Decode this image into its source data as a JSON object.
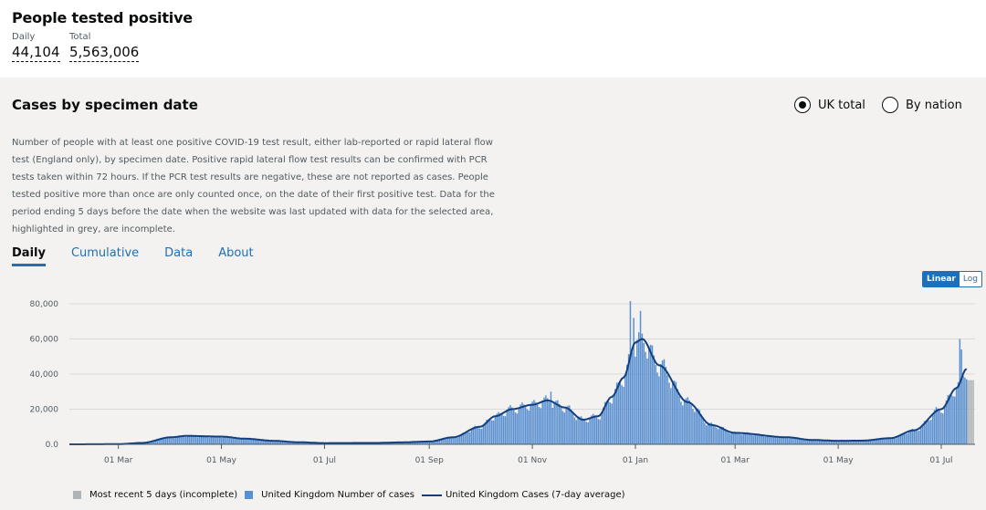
{
  "headline": {
    "title": "People tested positive",
    "daily_label": "Daily",
    "daily_value": "44,104",
    "total_label": "Total",
    "total_value": "5,563,006"
  },
  "card": {
    "title": "Cases by specimen date",
    "radio_uk": "UK total",
    "radio_nation": "By nation",
    "description": "Number of people with at least one positive COVID-19 test result, either lab-reported or rapid lateral flow test (England only), by specimen date. Positive rapid lateral flow test results can be confirmed with PCR tests taken within 72 hours. If the PCR test results are negative, these are not reported as cases. People tested positive more than once are only counted once, on the date of their first positive test. Data for the period ending 5 days before the date when the website was last updated with data for the selected area, highlighted in grey, are incomplete.",
    "tabs": [
      "Daily",
      "Cumulative",
      "Data",
      "About"
    ],
    "scale_linear": "Linear",
    "scale_log": "Log"
  },
  "colors": {
    "bar": "#5a8fd0",
    "line": "#12407f",
    "incomplete": "#b1b4b6",
    "accent": "#1d70b8"
  },
  "chart_data": {
    "type": "bar",
    "x_ticks": [
      "01 Mar",
      "01 May",
      "01 Jul",
      "01 Sep",
      "01 Nov",
      "01 Jan",
      "01 Mar",
      "01 May",
      "01 Jul"
    ],
    "y_ticks": [
      "0.0",
      "20,000",
      "40,000",
      "60,000",
      "80,000"
    ],
    "ylim": [
      0,
      80000
    ],
    "legend": [
      "Most recent 5 days (incomplete)",
      "United Kingdom Number of cases",
      "United Kingdom Cases (7-day average)"
    ],
    "seven_day_average_anchors": [
      [
        "2020-02-01",
        0
      ],
      [
        "2020-03-01",
        100
      ],
      [
        "2020-03-15",
        800
      ],
      [
        "2020-04-01",
        4000
      ],
      [
        "2020-04-10",
        4800
      ],
      [
        "2020-05-01",
        4400
      ],
      [
        "2020-05-15",
        3200
      ],
      [
        "2020-06-01",
        2000
      ],
      [
        "2020-06-15",
        1200
      ],
      [
        "2020-07-01",
        700
      ],
      [
        "2020-08-01",
        800
      ],
      [
        "2020-08-15",
        1100
      ],
      [
        "2020-09-01",
        1600
      ],
      [
        "2020-09-15",
        4000
      ],
      [
        "2020-10-01",
        10000
      ],
      [
        "2020-10-10",
        16000
      ],
      [
        "2020-10-20",
        20000
      ],
      [
        "2020-11-01",
        22500
      ],
      [
        "2020-11-10",
        25000
      ],
      [
        "2020-11-20",
        21000
      ],
      [
        "2020-12-01",
        14000
      ],
      [
        "2020-12-10",
        16000
      ],
      [
        "2020-12-18",
        27000
      ],
      [
        "2020-12-25",
        38000
      ],
      [
        "2021-01-01",
        58000
      ],
      [
        "2021-01-05",
        60000
      ],
      [
        "2021-01-15",
        45000
      ],
      [
        "2021-02-01",
        24000
      ],
      [
        "2021-02-15",
        11000
      ],
      [
        "2021-03-01",
        6500
      ],
      [
        "2021-04-01",
        4000
      ],
      [
        "2021-04-15",
        2500
      ],
      [
        "2021-05-01",
        2000
      ],
      [
        "2021-05-15",
        2100
      ],
      [
        "2021-06-01",
        3500
      ],
      [
        "2021-06-15",
        8000
      ],
      [
        "2021-07-01",
        20000
      ],
      [
        "2021-07-10",
        32000
      ],
      [
        "2021-07-16",
        43000
      ]
    ]
  }
}
